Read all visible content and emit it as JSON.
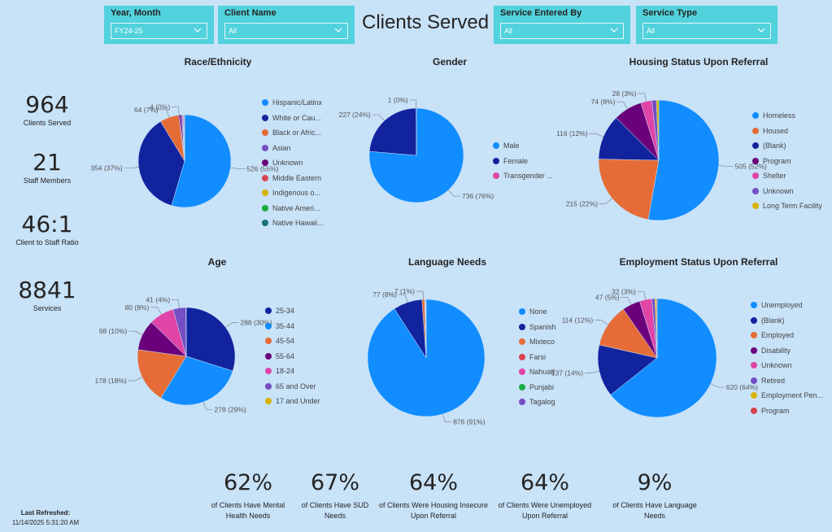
{
  "page": {
    "title": "Clients Served"
  },
  "slicers": [
    {
      "label": "Year, Month",
      "value": "FY24-25"
    },
    {
      "label": "Client Name",
      "value": "All"
    },
    {
      "label": "Service Entered By",
      "value": "All"
    },
    {
      "label": "Service Type",
      "value": "All"
    }
  ],
  "kpis": [
    {
      "value": "964",
      "label": "Clients Served"
    },
    {
      "value": "21",
      "label": "Staff Members"
    },
    {
      "value": "46:1",
      "label": "Client to Staff Ratio"
    },
    {
      "value": "8841",
      "label": "Services"
    }
  ],
  "bottom_kpis": [
    {
      "value": "62%",
      "label": "of Clients Have Mental Health Needs"
    },
    {
      "value": "67%",
      "label": "of Clients Have SUD Needs"
    },
    {
      "value": "64%",
      "label": "of Clients Were Housing Insecure Upon Referral"
    },
    {
      "value": "64%",
      "label": "of Clients Were Unemployed Upon Referral"
    },
    {
      "value": "9%",
      "label": "of Clients Have Language Needs"
    }
  ],
  "refresh": {
    "heading": "Last Refreshed:",
    "value": "11/14/2025 5:31:20 AM"
  },
  "chart_data": [
    {
      "type": "pie",
      "title": "Race/Ethnicity",
      "legend": [
        "Hispanic/Latinx",
        "White or Cau...",
        "Black or Afric...",
        "Asian",
        "Unknown",
        "Middle Eastern",
        "Indigenous o...",
        "Native Ameri...",
        "Native Hawaii..."
      ],
      "values": [
        526,
        354,
        64,
        4,
        6,
        3,
        3,
        2,
        2
      ],
      "colors": [
        "#118dff",
        "#12239e",
        "#e66c37",
        "#6b007b",
        "#6b007b",
        "#e044a7",
        "#744ec2",
        "#d9b300",
        "#d64550"
      ],
      "legend_colors": [
        "#118dff",
        "#12239e",
        "#e66c37",
        "#744ec2",
        "#6b007b",
        "#d64550",
        "#d9b300",
        "#1aab40",
        "#15727a"
      ],
      "data_labels": [
        {
          "text": "526 (55%)",
          "index": 0
        },
        {
          "text": "354 (37%)",
          "index": 1
        },
        {
          "text": "64 (7%)",
          "index": 2
        },
        {
          "text": "4 (0%)",
          "index": 3
        }
      ]
    },
    {
      "type": "pie",
      "title": "Gender",
      "legend": [
        "Male",
        "Female",
        "Transgender ..."
      ],
      "values": [
        736,
        227,
        1
      ],
      "colors": [
        "#118dff",
        "#12239e",
        "#e044a7"
      ],
      "legend_colors": [
        "#118dff",
        "#12239e",
        "#e044a7"
      ],
      "data_labels": [
        {
          "text": "736 (76%)",
          "index": 0
        },
        {
          "text": "227 (24%)",
          "index": 1
        },
        {
          "text": "1 (0%)",
          "index": 2
        }
      ]
    },
    {
      "type": "pie",
      "title": "Housing Status Upon Referral",
      "legend": [
        "Homeless",
        "Housed",
        "(Blank)",
        "Program",
        "Shelter",
        "Unknown",
        "Long Term Facility"
      ],
      "values": [
        505,
        215,
        116,
        74,
        28,
        12,
        6
      ],
      "colors": [
        "#118dff",
        "#e66c37",
        "#12239e",
        "#6b007b",
        "#e044a7",
        "#744ec2",
        "#d9b300"
      ],
      "legend_colors": [
        "#118dff",
        "#e66c37",
        "#12239e",
        "#6b007b",
        "#e044a7",
        "#744ec2",
        "#d9b300"
      ],
      "data_labels": [
        {
          "text": "505 (52%)",
          "index": 0
        },
        {
          "text": "215 (22%)",
          "index": 1
        },
        {
          "text": "116 (12%)",
          "index": 2
        },
        {
          "text": "74 (8%)",
          "index": 3
        },
        {
          "text": "28 (3%)",
          "index": 4
        }
      ]
    },
    {
      "type": "pie",
      "title": "Age",
      "legend": [
        "25-34",
        "35-44",
        "45-54",
        "55-64",
        "18-24",
        "65 and Over",
        "17 and Under"
      ],
      "values": [
        288,
        278,
        178,
        98,
        80,
        41,
        1
      ],
      "colors": [
        "#12239e",
        "#118dff",
        "#e66c37",
        "#6b007b",
        "#e044a7",
        "#744ec2",
        "#d9b300"
      ],
      "legend_colors": [
        "#12239e",
        "#118dff",
        "#e66c37",
        "#6b007b",
        "#e044a7",
        "#744ec2",
        "#d9b300"
      ],
      "data_labels": [
        {
          "text": "288 (30%)",
          "index": 0
        },
        {
          "text": "278 (29%)",
          "index": 1
        },
        {
          "text": "178 (18%)",
          "index": 2
        },
        {
          "text": "98 (10%)",
          "index": 3
        },
        {
          "text": "80 (8%)",
          "index": 4
        },
        {
          "text": "41 (4%)",
          "index": 5
        }
      ]
    },
    {
      "type": "pie",
      "title": "Language Needs",
      "legend": [
        "None",
        "Spanish",
        "Mixteco",
        "Farsi",
        "Nahuatl",
        "Punjabi",
        "Tagalog"
      ],
      "values": [
        876,
        77,
        7,
        1,
        1,
        1,
        1
      ],
      "colors": [
        "#118dff",
        "#12239e",
        "#e66c37",
        "#d64550",
        "#6b007b",
        "#1aab40",
        "#744ec2"
      ],
      "legend_colors": [
        "#118dff",
        "#12239e",
        "#e66c37",
        "#d64550",
        "#e044a7",
        "#1aab40",
        "#744ec2"
      ],
      "data_labels": [
        {
          "text": "876 (91%)",
          "index": 0
        },
        {
          "text": "77 (8%)",
          "index": 1
        },
        {
          "text": "7 (1%)",
          "index": 2
        }
      ]
    },
    {
      "type": "pie",
      "title": "Employment Status Upon Referral",
      "legend": [
        "Unemployed",
        "(Blank)",
        "Employed",
        "Disability",
        "Unknown",
        "Retired",
        "Employment Pen...",
        "Program"
      ],
      "values": [
        620,
        137,
        114,
        47,
        32,
        8,
        4,
        2
      ],
      "colors": [
        "#118dff",
        "#12239e",
        "#e66c37",
        "#6b007b",
        "#e044a7",
        "#744ec2",
        "#d9b300",
        "#d64550"
      ],
      "legend_colors": [
        "#118dff",
        "#12239e",
        "#e66c37",
        "#6b007b",
        "#e044a7",
        "#744ec2",
        "#d9b300",
        "#d64550"
      ],
      "data_labels": [
        {
          "text": "620 (64%)",
          "index": 0
        },
        {
          "text": "137 (14%)",
          "index": 1
        },
        {
          "text": "114 (12%)",
          "index": 2
        },
        {
          "text": "47 (5%)",
          "index": 3
        },
        {
          "text": "32 (3%)",
          "index": 4
        }
      ]
    }
  ]
}
